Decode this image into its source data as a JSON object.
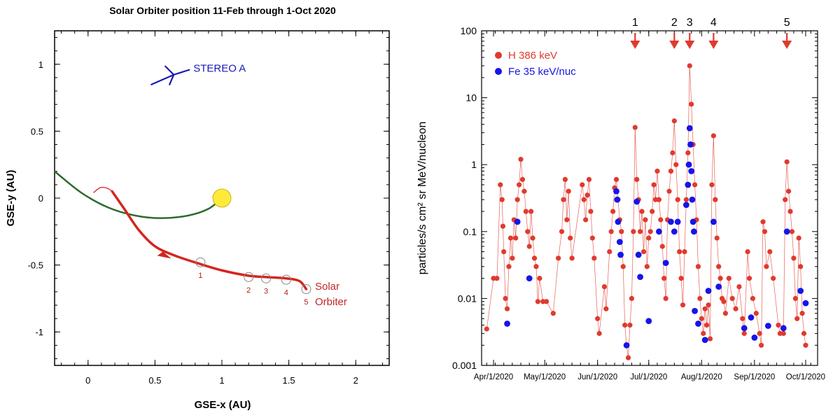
{
  "chart_data": [
    {
      "type": "line",
      "title": "Solar Orbiter position 11-Feb through 1-Oct 2020",
      "xlabel": "GSE-x (AU)",
      "ylabel": "GSE-y (AU)",
      "xlim": [
        -0.25,
        2.25
      ],
      "ylim": [
        -1.25,
        1.25
      ],
      "xticks": [
        0,
        0.5,
        1,
        1.5,
        2
      ],
      "xtick_labels": [
        "0",
        "0.5",
        "1",
        "1.5",
        "2"
      ],
      "yticks": [
        -1,
        -0.5,
        0,
        0.5,
        1
      ],
      "ytick_labels": [
        "-1",
        "-0.5",
        "0",
        "0.5",
        "1"
      ],
      "series": [
        {
          "name": "Earth orbit arc",
          "color": "#2e6b2e",
          "points": [
            [
              -0.25,
              0.2
            ],
            [
              -0.05,
              0.04
            ],
            [
              0.15,
              -0.07
            ],
            [
              0.35,
              -0.13
            ],
            [
              0.55,
              -0.15
            ],
            [
              0.75,
              -0.13
            ],
            [
              0.9,
              -0.08
            ],
            [
              1.0,
              0.0
            ]
          ]
        },
        {
          "name": "Solar Orbiter track",
          "color": "#d4261f",
          "points": [
            [
              0.04,
              0.04
            ],
            [
              0.1,
              0.08
            ],
            [
              0.18,
              0.05
            ],
            [
              0.27,
              -0.08
            ],
            [
              0.38,
              -0.24
            ],
            [
              0.5,
              -0.36
            ],
            [
              0.65,
              -0.43
            ],
            [
              0.83,
              -0.49
            ],
            [
              1.0,
              -0.54
            ],
            [
              1.2,
              -0.58
            ],
            [
              1.33,
              -0.59
            ],
            [
              1.48,
              -0.6
            ],
            [
              1.58,
              -0.62
            ],
            [
              1.63,
              -0.68
            ]
          ]
        }
      ],
      "sun": {
        "x": 1.0,
        "y": 0.0,
        "color": "#ffea3a"
      },
      "stereo_a": {
        "label": "STEREO A",
        "x": 0.63,
        "y": 0.88,
        "color": "#1a1ab4"
      },
      "markers": [
        {
          "label": "1",
          "x": 0.84,
          "y": -0.48
        },
        {
          "label": "2",
          "x": 1.2,
          "y": -0.59
        },
        {
          "label": "3",
          "x": 1.33,
          "y": -0.6
        },
        {
          "label": "4",
          "x": 1.48,
          "y": -0.61
        },
        {
          "label": "5",
          "x": 1.63,
          "y": -0.68
        }
      ],
      "orbiter_label_line1": "Solar",
      "orbiter_label_line2": "Orbiter"
    },
    {
      "type": "scatter",
      "yscale": "log",
      "xlabel": "",
      "ylabel": "particles/s cm² sr MeV/nucleon",
      "xlim_days": [
        -7,
        190
      ],
      "ylim": [
        0.001,
        100
      ],
      "xtick_days": [
        0,
        30,
        61,
        91,
        122,
        153,
        183
      ],
      "xtick_labels": [
        "Apr/1/2020",
        "May/1/2020",
        "Jun/1/2020",
        "Jul/1/2020",
        "Aug/1/2020",
        "Sep/1/2020",
        "Oct/1/2020"
      ],
      "ytick_values": [
        0.001,
        0.01,
        0.1,
        1,
        10,
        100
      ],
      "ytick_labels": [
        "0.001",
        "0.01",
        "0.1",
        "1",
        "10",
        "100"
      ],
      "legend": [
        {
          "label": "H 386 keV",
          "color": "#e03a2e"
        },
        {
          "label": "Fe 35 keV/nuc",
          "color": "#1515e8"
        }
      ],
      "events": [
        {
          "label": "1",
          "day": 83
        },
        {
          "label": "2",
          "day": 106
        },
        {
          "label": "3",
          "day": 115
        },
        {
          "label": "4",
          "day": 129
        },
        {
          "label": "5",
          "day": 172
        }
      ],
      "series": [
        {
          "name": "H 386 keV",
          "color": "#e03a2e",
          "connected": true,
          "points": [
            [
              -4,
              0.0035
            ],
            [
              0,
              0.02
            ],
            [
              2,
              0.02
            ],
            [
              4,
              0.5
            ],
            [
              5,
              0.3
            ],
            [
              5.5,
              0.12
            ],
            [
              6,
              0.05
            ],
            [
              7,
              0.01
            ],
            [
              8,
              0.007
            ],
            [
              9,
              0.03
            ],
            [
              10,
              0.08
            ],
            [
              11,
              0.04
            ],
            [
              12,
              0.15
            ],
            [
              13,
              0.08
            ],
            [
              14,
              0.3
            ],
            [
              15,
              0.5
            ],
            [
              16,
              1.2
            ],
            [
              17,
              0.6
            ],
            [
              18,
              0.4
            ],
            [
              19,
              0.2
            ],
            [
              20,
              0.1
            ],
            [
              21,
              0.06
            ],
            [
              22,
              0.2
            ],
            [
              23,
              0.08
            ],
            [
              24,
              0.04
            ],
            [
              25,
              0.03
            ],
            [
              26,
              0.009
            ],
            [
              27,
              0.02
            ],
            [
              29,
              0.009
            ],
            [
              31,
              0.009
            ],
            [
              35,
              0.006
            ],
            [
              38,
              0.04
            ],
            [
              40,
              0.1
            ],
            [
              41,
              0.3
            ],
            [
              42,
              0.6
            ],
            [
              43,
              0.15
            ],
            [
              44,
              0.4
            ],
            [
              45,
              0.08
            ],
            [
              46,
              0.04
            ],
            [
              52,
              0.5
            ],
            [
              53,
              0.3
            ],
            [
              54,
              0.15
            ],
            [
              55,
              0.35
            ],
            [
              56,
              0.6
            ],
            [
              57,
              0.2
            ],
            [
              58,
              0.08
            ],
            [
              59,
              0.04
            ],
            [
              61,
              0.005
            ],
            [
              62,
              0.003
            ],
            [
              65,
              0.015
            ],
            [
              66,
              0.007
            ],
            [
              68,
              0.05
            ],
            [
              69,
              0.1
            ],
            [
              70,
              0.2
            ],
            [
              71,
              0.45
            ],
            [
              72,
              0.6
            ],
            [
              73,
              0.3
            ],
            [
              74,
              0.15
            ],
            [
              75,
              0.1
            ],
            [
              76,
              0.03
            ],
            [
              77,
              0.004
            ],
            [
              78,
              0.002
            ],
            [
              79,
              0.0013
            ],
            [
              80,
              0.004
            ],
            [
              81,
              0.01
            ],
            [
              82,
              0.1
            ],
            [
              83,
              3.6
            ],
            [
              84,
              0.6
            ],
            [
              85,
              0.3
            ],
            [
              86,
              0.1
            ],
            [
              87,
              0.2
            ],
            [
              88,
              0.05
            ],
            [
              89,
              0.15
            ],
            [
              90,
              0.03
            ],
            [
              91,
              0.08
            ],
            [
              92,
              0.1
            ],
            [
              93,
              0.2
            ],
            [
              94,
              0.5
            ],
            [
              95,
              0.3
            ],
            [
              96,
              0.8
            ],
            [
              97,
              0.3
            ],
            [
              98,
              0.15
            ],
            [
              99,
              0.06
            ],
            [
              100,
              0.02
            ],
            [
              101,
              0.01
            ],
            [
              102,
              0.15
            ],
            [
              103,
              0.4
            ],
            [
              104,
              0.8
            ],
            [
              105,
              1.5
            ],
            [
              106,
              4.5
            ],
            [
              107,
              1
            ],
            [
              108,
              0.3
            ],
            [
              109,
              0.05
            ],
            [
              110,
              0.02
            ],
            [
              111,
              0.008
            ],
            [
              112,
              0.05
            ],
            [
              113,
              0.3
            ],
            [
              114,
              1.5
            ],
            [
              115,
              30
            ],
            [
              116,
              8
            ],
            [
              117,
              2
            ],
            [
              118,
              0.5
            ],
            [
              119,
              0.15
            ],
            [
              120,
              0.03
            ],
            [
              121,
              0.01
            ],
            [
              122,
              0.005
            ],
            [
              123,
              0.003
            ],
            [
              124,
              0.007
            ],
            [
              125,
              0.004
            ],
            [
              126,
              0.008
            ],
            [
              127,
              0.0025
            ],
            [
              128,
              0.5
            ],
            [
              129,
              2.7
            ],
            [
              130,
              0.3
            ],
            [
              131,
              0.08
            ],
            [
              132,
              0.03
            ],
            [
              133,
              0.02
            ],
            [
              134,
              0.01
            ],
            [
              135,
              0.009
            ],
            [
              136,
              0.006
            ],
            [
              138,
              0.02
            ],
            [
              140,
              0.01
            ],
            [
              142,
              0.007
            ],
            [
              144,
              0.015
            ],
            [
              146,
              0.005
            ],
            [
              147,
              0.003
            ],
            [
              149,
              0.05
            ],
            [
              150,
              0.02
            ],
            [
              152,
              0.01
            ],
            [
              154,
              0.006
            ],
            [
              156,
              0.003
            ],
            [
              157,
              0.002
            ],
            [
              158,
              0.14
            ],
            [
              159,
              0.1
            ],
            [
              160,
              0.03
            ],
            [
              162,
              0.05
            ],
            [
              164,
              0.02
            ],
            [
              167,
              0.004
            ],
            [
              168,
              0.003
            ],
            [
              170,
              0.003
            ],
            [
              171,
              0.3
            ],
            [
              172,
              1.1
            ],
            [
              173,
              0.4
            ],
            [
              174,
              0.2
            ],
            [
              175,
              0.1
            ],
            [
              176,
              0.04
            ],
            [
              177,
              0.01
            ],
            [
              178,
              0.005
            ],
            [
              179,
              0.08
            ],
            [
              180,
              0.03
            ],
            [
              181,
              0.006
            ],
            [
              182,
              0.003
            ],
            [
              183,
              0.002
            ]
          ]
        },
        {
          "name": "Fe 35 keV/nuc",
          "color": "#1515e8",
          "connected": false,
          "points": [
            [
              8,
              0.0042
            ],
            [
              14,
              0.14
            ],
            [
              21,
              0.02
            ],
            [
              72,
              0.4
            ],
            [
              72.5,
              0.3
            ],
            [
              73,
              0.14
            ],
            [
              74,
              0.07
            ],
            [
              74.5,
              0.045
            ],
            [
              78,
              0.002
            ],
            [
              84,
              0.28
            ],
            [
              85,
              0.045
            ],
            [
              86,
              0.021
            ],
            [
              91,
              0.0046
            ],
            [
              97,
              0.1
            ],
            [
              101,
              0.034
            ],
            [
              104,
              0.14
            ],
            [
              106,
              0.1
            ],
            [
              108,
              0.14
            ],
            [
              113,
              0.25
            ],
            [
              114,
              0.5
            ],
            [
              114.5,
              1
            ],
            [
              115,
              3.5
            ],
            [
              115.5,
              2
            ],
            [
              116,
              0.8
            ],
            [
              116.5,
              0.3
            ],
            [
              117,
              0.14
            ],
            [
              117.5,
              0.1
            ],
            [
              118,
              0.0065
            ],
            [
              120,
              0.0042
            ],
            [
              124,
              0.0024
            ],
            [
              126,
              0.013
            ],
            [
              129,
              0.14
            ],
            [
              132,
              0.015
            ],
            [
              147,
              0.0036
            ],
            [
              151,
              0.0052
            ],
            [
              153,
              0.0026
            ],
            [
              161,
              0.0039
            ],
            [
              170,
              0.0036
            ],
            [
              172,
              0.1
            ],
            [
              180,
              0.013
            ],
            [
              183,
              0.0085
            ]
          ]
        }
      ]
    }
  ]
}
